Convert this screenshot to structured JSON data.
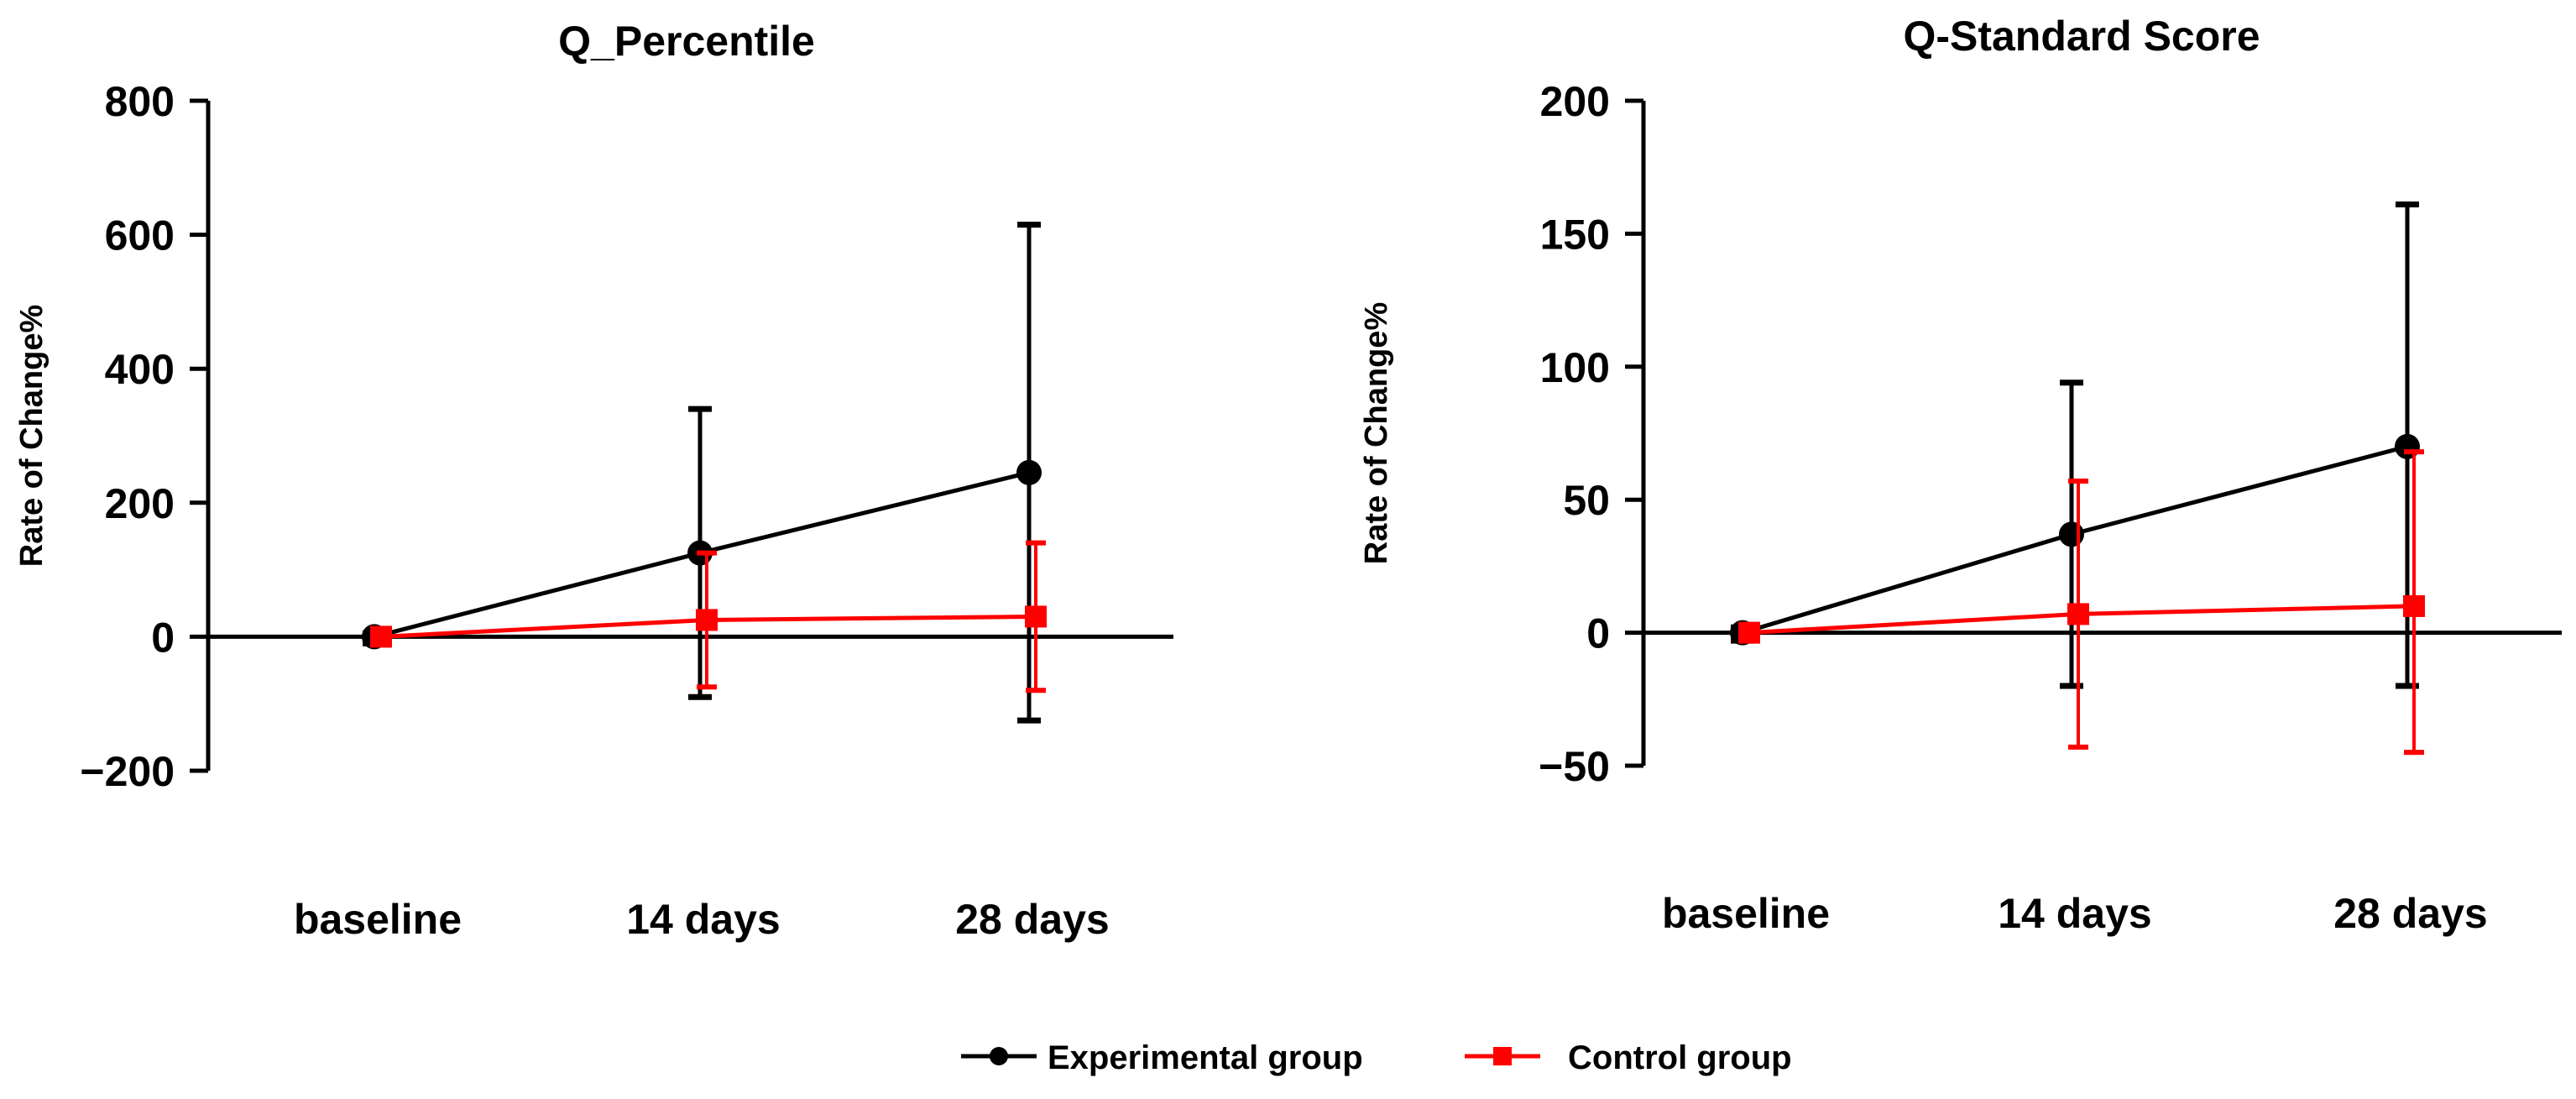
{
  "chart_data": [
    {
      "type": "line",
      "title": "Q_Percentile",
      "xlabel": "",
      "ylabel": "Rate of Change%",
      "categories": [
        "baseline",
        "14 days",
        "28 days"
      ],
      "ylim": [
        -200,
        800
      ],
      "yticks": [
        800,
        600,
        400,
        200,
        0,
        -200
      ],
      "ytick_labels": [
        "800",
        "600",
        "400",
        "200",
        "0",
        "−200"
      ],
      "series": [
        {
          "name": "Experimental group",
          "color": "#000000",
          "marker": "circle",
          "values": [
            0,
            125,
            245
          ],
          "err_low": [
            -10,
            -90,
            -125
          ],
          "err_high": [
            5,
            340,
            615
          ]
        },
        {
          "name": "Control group",
          "color": "#ff0000",
          "marker": "square",
          "values": [
            0,
            25,
            30
          ],
          "err_low": [
            -5,
            -75,
            -80
          ],
          "err_high": [
            5,
            125,
            140
          ]
        }
      ]
    },
    {
      "type": "line",
      "title": "Q-Standard Score",
      "xlabel": "",
      "ylabel": "Rate of Change%",
      "categories": [
        "baseline",
        "14 days",
        "28 days"
      ],
      "ylim": [
        -50,
        200
      ],
      "yticks": [
        200,
        150,
        100,
        50,
        0,
        -50
      ],
      "ytick_labels": [
        "200",
        "150",
        "100",
        "50",
        "0",
        "−50"
      ],
      "series": [
        {
          "name": "Experimental group",
          "color": "#000000",
          "marker": "circle",
          "values": [
            0,
            37,
            70
          ],
          "err_low": [
            -3,
            -20,
            -20
          ],
          "err_high": [
            2,
            94,
            161
          ]
        },
        {
          "name": "Control group",
          "color": "#ff0000",
          "marker": "square",
          "values": [
            0,
            7,
            10
          ],
          "err_low": [
            -2,
            -43,
            -45
          ],
          "err_high": [
            2,
            57,
            68
          ]
        }
      ]
    }
  ],
  "legend": {
    "placement": "bottom-center",
    "entries": [
      {
        "label": "Experimental group",
        "color": "#000000",
        "marker": "circle"
      },
      {
        "label": "Control group",
        "color": "#ff0000",
        "marker": "square"
      }
    ]
  }
}
